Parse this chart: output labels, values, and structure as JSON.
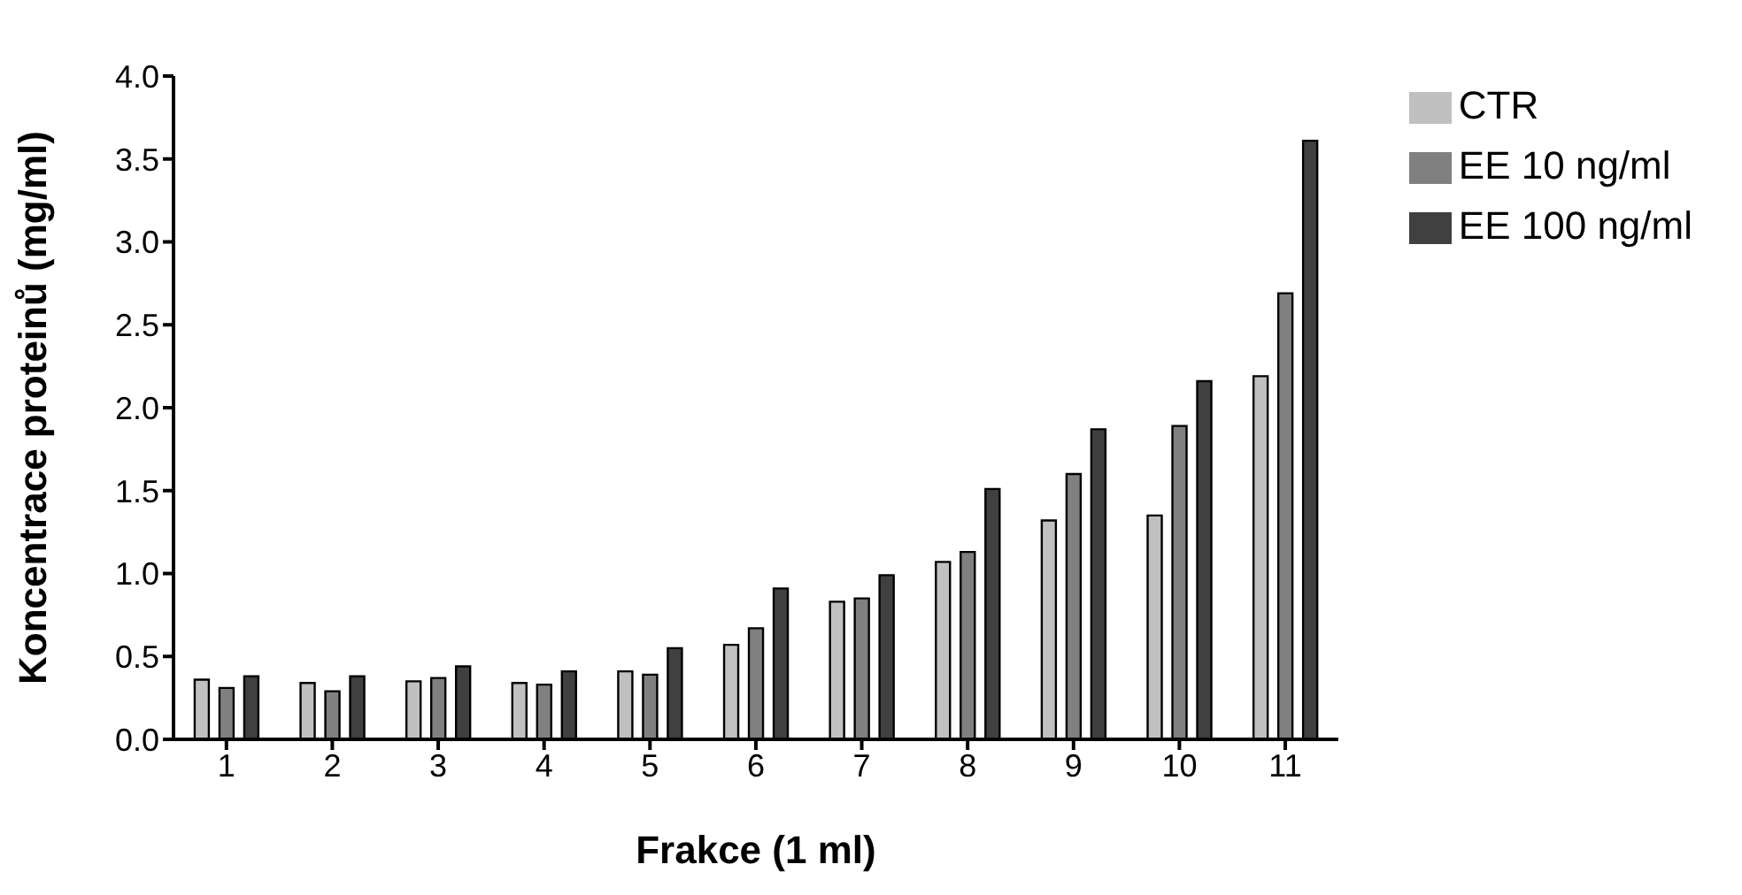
{
  "chart_data": {
    "type": "bar",
    "xlabel": "Frakce (1 ml)",
    "ylabel": "Koncentrace proteinů (mg/ml)",
    "categories": [
      "1",
      "2",
      "3",
      "4",
      "5",
      "6",
      "7",
      "8",
      "9",
      "10",
      "11"
    ],
    "series": [
      {
        "name": "CTR",
        "color": "#c0c0c0",
        "values": [
          0.36,
          0.34,
          0.35,
          0.34,
          0.41,
          0.57,
          0.83,
          1.07,
          1.32,
          1.35,
          2.19
        ]
      },
      {
        "name": "EE 10 ng/ml",
        "color": "#808080",
        "values": [
          0.31,
          0.29,
          0.37,
          0.33,
          0.39,
          0.67,
          0.85,
          1.13,
          1.6,
          1.89,
          2.69
        ]
      },
      {
        "name": "EE 100 ng/ml",
        "color": "#404040",
        "values": [
          0.38,
          0.38,
          0.44,
          0.41,
          0.55,
          0.91,
          0.99,
          1.51,
          1.87,
          2.16,
          3.61
        ]
      }
    ],
    "ylim": [
      0,
      4
    ],
    "yticks": [
      {
        "value": 0,
        "label": "0.0"
      },
      {
        "value": 0.5,
        "label": "0.5"
      },
      {
        "value": 1,
        "label": "1.0"
      },
      {
        "value": 1.5,
        "label": "1.5"
      },
      {
        "value": 2,
        "label": "2.0"
      },
      {
        "value": 2.5,
        "label": "2.5"
      },
      {
        "value": 3,
        "label": "3.0"
      },
      {
        "value": 3.5,
        "label": "3.5"
      },
      {
        "value": 4,
        "label": "4.0"
      }
    ],
    "grid": false,
    "legend": "top right"
  }
}
